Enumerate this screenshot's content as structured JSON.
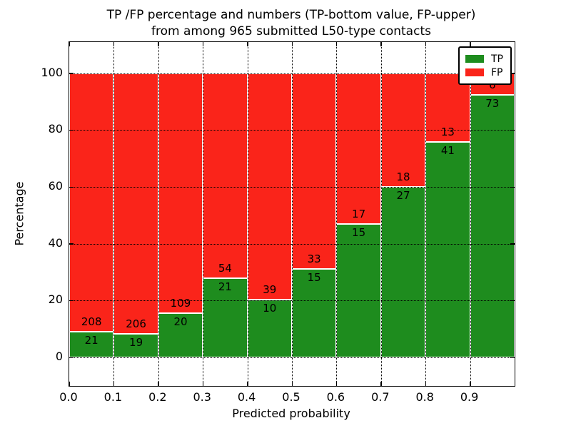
{
  "chart_data": {
    "type": "bar",
    "stacked": true,
    "percent_normalized": true,
    "title_line1": "TP /FP percentage and numbers (TP-bottom value, FP-upper)",
    "title_line2": "from among 965 submitted L50-type contacts",
    "total_contacts": 965,
    "xlabel": "Predicted probability",
    "ylabel": "Percentage",
    "categories": [
      "0.0",
      "0.1",
      "0.2",
      "0.3",
      "0.4",
      "0.5",
      "0.6",
      "0.7",
      "0.8",
      "0.9"
    ],
    "bin_width": 0.1,
    "series": [
      {
        "name": "TP",
        "color": "#1e8c1e",
        "counts": [
          21,
          19,
          20,
          21,
          10,
          15,
          15,
          27,
          41,
          73
        ]
      },
      {
        "name": "FP",
        "color": "#fa241a",
        "counts": [
          208,
          206,
          109,
          54,
          39,
          33,
          17,
          18,
          13,
          6
        ]
      }
    ],
    "tp_percent": [
      9.2,
      8.4,
      15.5,
      28.0,
      20.4,
      31.3,
      46.9,
      60.0,
      75.9,
      92.4
    ],
    "yticks": [
      0,
      20,
      40,
      60,
      80,
      100
    ],
    "xticks": [
      "0.0",
      "0.1",
      "0.2",
      "0.3",
      "0.4",
      "0.5",
      "0.6",
      "0.7",
      "0.8",
      "0.9"
    ],
    "ylim": [
      -10,
      111
    ],
    "xlim": [
      0.0,
      1.0
    ],
    "grid_style": "dotted",
    "legend": {
      "position": "upper right",
      "entries": [
        {
          "label": "TP",
          "color": "#1e8c1e"
        },
        {
          "label": "FP",
          "color": "#fa241a"
        }
      ]
    }
  }
}
